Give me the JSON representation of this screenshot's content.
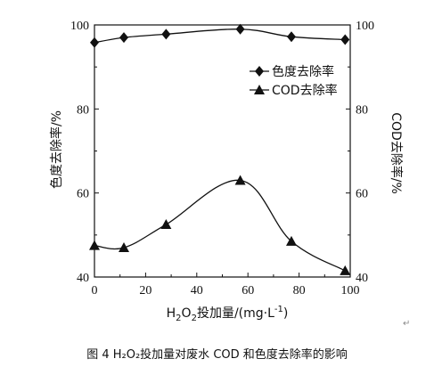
{
  "chart_data": {
    "type": "line",
    "xlabel_parts": {
      "prefix": "H",
      "sub1": "2",
      "mid": "O",
      "sub2": "2",
      "rest": "投加量/(mg·L",
      "sup": "-1",
      "end": ")"
    },
    "ylabel_left": "色度去除率/%",
    "ylabel_right": "COD去除率/%",
    "xlim": [
      0,
      100
    ],
    "ylim": [
      40,
      100
    ],
    "x_ticks": [
      0,
      20,
      40,
      60,
      80,
      100
    ],
    "y_ticks": [
      40,
      60,
      80,
      100
    ],
    "grid": false,
    "legend_placement": "upper-right",
    "series": [
      {
        "name": "色度去除率",
        "marker": "diamond",
        "x": [
          0,
          11.5,
          28,
          57,
          77,
          98
        ],
        "values": [
          95.8,
          97,
          97.8,
          99,
          97.2,
          96.5
        ]
      },
      {
        "name": "COD去除率",
        "marker": "triangle",
        "x": [
          0,
          11.5,
          28,
          57,
          77,
          98
        ],
        "values": [
          47.5,
          47,
          52.5,
          63,
          48.5,
          41.5
        ]
      }
    ],
    "curve_color": "#111111"
  },
  "caption": "图 4   H₂O₂投加量对废水 COD 和色度去除率的影响"
}
